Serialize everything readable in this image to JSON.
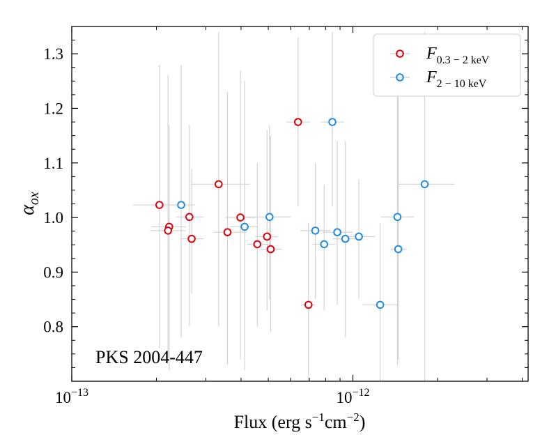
{
  "chart_data": {
    "type": "scatter",
    "title": "",
    "annotation": "PKS 2004-447",
    "xlabel": "Flux (erg s",
    "xlabel_parts": {
      "base": "Flux (erg s",
      "sup1": "−1",
      "mid": "cm",
      "sup2": "−2",
      "end": ")"
    },
    "ylabel": "α",
    "ylabel_sub": "ox",
    "xscale": "log",
    "xlim": [
      1e-13,
      4.2e-12
    ],
    "ylim": [
      0.7,
      1.35
    ],
    "x_major_ticks": [
      {
        "value": 1e-13,
        "base": "10",
        "exp": "−13"
      },
      {
        "value": 1e-12,
        "base": "10",
        "exp": "−12"
      }
    ],
    "y_ticks": [
      0.8,
      0.9,
      1.0,
      1.1,
      1.2,
      1.3
    ],
    "y_tick_labels": [
      "0.8",
      "0.9",
      "1.0",
      "1.1",
      "1.2",
      "1.3"
    ],
    "legend_position": "top-right",
    "series": [
      {
        "name": "F",
        "name_sub": "0.3 − 2 keV",
        "color": "#e0000b",
        "points": [
          {
            "x": 2.05e-13,
            "y": 1.023,
            "xerr": [
              1.65e-13,
              2.5e-13
            ],
            "yerr": [
              0.76,
              1.28
            ]
          },
          {
            "x": 2.22e-13,
            "y": 0.983,
            "xerr": [
              1.92e-13,
              2.55e-13
            ],
            "yerr": [
              0.72,
              1.17
            ]
          },
          {
            "x": 2.2e-13,
            "y": 0.976,
            "xerr": [
              1.9e-13,
              2.55e-13
            ],
            "yerr": [
              0.74,
              1.26
            ]
          },
          {
            "x": 2.62e-13,
            "y": 1.001,
            "xerr": [
              2.35e-13,
              2.95e-13
            ],
            "yerr": [
              0.8,
              1.17
            ]
          },
          {
            "x": 2.67e-13,
            "y": 0.961,
            "xerr": [
              2.45e-13,
              2.95e-13
            ],
            "yerr": [
              0.86,
              1.09
            ]
          },
          {
            "x": 3.33e-13,
            "y": 1.061,
            "xerr": [
              2.65e-13,
              4.3e-13
            ],
            "yerr": [
              0.8,
              1.34
            ]
          },
          {
            "x": 3.58e-13,
            "y": 0.973,
            "xerr": [
              3.2e-13,
              4.2e-13
            ],
            "yerr": [
              0.73,
              1.23
            ]
          },
          {
            "x": 3.98e-13,
            "y": 1.0,
            "xerr": [
              3.5e-13,
              4.5e-13
            ],
            "yerr": [
              0.74,
              1.27
            ]
          },
          {
            "x": 4.57e-13,
            "y": 0.951,
            "xerr": [
              4.2e-13,
              5.1e-13
            ],
            "yerr": [
              0.8,
              1.1
            ]
          },
          {
            "x": 4.95e-13,
            "y": 0.965,
            "xerr": [
              4.5e-13,
              5.4e-13
            ],
            "yerr": [
              0.83,
              1.16
            ]
          },
          {
            "x": 5.1e-13,
            "y": 0.942,
            "xerr": [
              4.7e-13,
              5.6e-13
            ],
            "yerr": [
              0.79,
              1.15
            ]
          },
          {
            "x": 6.38e-13,
            "y": 1.175,
            "xerr": [
              5.8e-13,
              7.05e-13
            ],
            "yerr": [
              1.02,
              1.33
            ]
          },
          {
            "x": 6.95e-13,
            "y": 0.84,
            "xerr": [
              6.55e-13,
              7.35e-13
            ],
            "yerr": [
              0.7,
              0.99
            ]
          }
        ]
      },
      {
        "name": "F",
        "name_sub": "2 − 10 keV",
        "color": "#1f8ce6",
        "points": [
          {
            "x": 2.45e-13,
            "y": 1.023,
            "xerr": [
              2.2e-13,
              2.75e-13
            ],
            "yerr": [
              0.78,
              1.28
            ]
          },
          {
            "x": 4.12e-13,
            "y": 0.983,
            "xerr": [
              3.65e-13,
              4.6e-13
            ],
            "yerr": [
              0.72,
              1.25
            ]
          },
          {
            "x": 5.05e-13,
            "y": 1.001,
            "xerr": [
              4e-13,
              6e-13
            ],
            "yerr": [
              0.85,
              1.17
            ]
          },
          {
            "x": 7.35e-13,
            "y": 0.976,
            "xerr": [
              6.5e-13,
              8.3e-13
            ],
            "yerr": [
              0.85,
              1.1
            ]
          },
          {
            "x": 7.9e-13,
            "y": 0.951,
            "xerr": [
              7.2e-13,
              8.7e-13
            ],
            "yerr": [
              0.83,
              1.06
            ]
          },
          {
            "x": 8.45e-13,
            "y": 1.175,
            "xerr": [
              7.7e-13,
              9.3e-13
            ],
            "yerr": [
              1.02,
              1.34
            ]
          },
          {
            "x": 8.8e-13,
            "y": 0.973,
            "xerr": [
              7.8e-13,
              1e-12
            ],
            "yerr": [
              0.84,
              1.14
            ]
          },
          {
            "x": 9.4e-13,
            "y": 0.961,
            "xerr": [
              8.5e-13,
              1.05e-12
            ],
            "yerr": [
              0.78,
              1.14
            ]
          },
          {
            "x": 1.05e-12,
            "y": 0.965,
            "xerr": [
              9.3e-13,
              1.2e-12
            ],
            "yerr": [
              0.85,
              1.07
            ]
          },
          {
            "x": 1.25e-12,
            "y": 0.84,
            "xerr": [
              1.08e-12,
              1.45e-12
            ],
            "yerr": [
              0.7,
              0.99
            ]
          },
          {
            "x": 1.44e-12,
            "y": 1.001,
            "xerr": [
              1.26e-12,
              1.65e-12
            ],
            "yerr": [
              0.73,
              1.27
            ]
          },
          {
            "x": 1.45e-12,
            "y": 0.942,
            "xerr": [
              1.36e-12,
              1.55e-12
            ],
            "yerr": [
              0.74,
              1.22
            ]
          },
          {
            "x": 1.8e-12,
            "y": 1.061,
            "xerr": [
              1.45e-12,
              2.3e-12
            ],
            "yerr": [
              0.7,
              1.34
            ]
          }
        ]
      }
    ]
  }
}
